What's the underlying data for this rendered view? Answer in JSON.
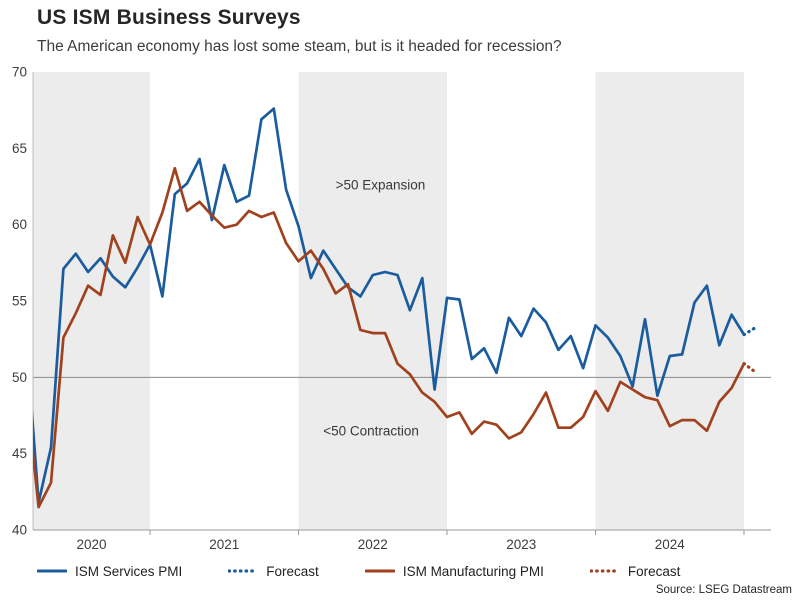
{
  "header": {
    "title": "US ISM Business Surveys",
    "subtitle": "The American economy has lost some steam, but is it headed for recession?"
  },
  "chart_data": {
    "type": "line",
    "title": "US ISM Business Surveys",
    "subtitle": "The American economy has lost some steam, but is it headed for recession?",
    "x_start_month": "2020-03",
    "x_end_solid_month": "2025-01",
    "forecast_month": "2025-02",
    "ylim": [
      40,
      70
    ],
    "yticks": [
      40,
      45,
      50,
      55,
      60,
      65,
      70
    ],
    "year_labels": [
      "2020",
      "2021",
      "2022",
      "2023",
      "2024"
    ],
    "shaded_years": [
      "2020",
      "2022",
      "2024"
    ],
    "reference_line": 50,
    "band_color": "#ececec",
    "series": [
      {
        "name": "ISM Services PMI",
        "color": "#1b5c9e",
        "style": "solid",
        "values": [
          52.5,
          41.8,
          45.4,
          57.1,
          58.1,
          56.9,
          57.8,
          56.6,
          55.9,
          57.2,
          58.7,
          55.3,
          62.0,
          62.7,
          64.3,
          60.3,
          63.9,
          61.5,
          61.9,
          66.9,
          67.6,
          62.3,
          59.9,
          56.5,
          58.3,
          57.1,
          55.9,
          55.3,
          56.7,
          56.9,
          56.7,
          54.4,
          56.5,
          49.2,
          55.2,
          55.1,
          51.2,
          51.9,
          50.3,
          53.9,
          52.7,
          54.5,
          53.6,
          51.8,
          52.7,
          50.6,
          53.4,
          52.6,
          51.4,
          49.4,
          53.8,
          48.8,
          51.4,
          51.5,
          54.9,
          56.0,
          52.1,
          54.1,
          52.8
        ]
      },
      {
        "name": "Forecast",
        "color": "#1b5c9e",
        "style": "dotted",
        "values": [
          53.3
        ]
      },
      {
        "name": "ISM Manufacturing PMI",
        "color": "#a0421e",
        "style": "solid",
        "values": [
          49.1,
          41.5,
          43.1,
          52.6,
          54.2,
          56.0,
          55.4,
          59.3,
          57.5,
          60.5,
          58.7,
          60.8,
          63.7,
          60.9,
          61.5,
          60.6,
          59.8,
          60.0,
          60.9,
          60.5,
          60.8,
          58.8,
          57.6,
          58.3,
          57.1,
          55.5,
          56.1,
          53.1,
          52.9,
          52.9,
          50.9,
          50.2,
          49.0,
          48.4,
          47.4,
          47.7,
          46.3,
          47.1,
          46.9,
          46.0,
          46.4,
          47.6,
          49.0,
          46.7,
          46.7,
          47.4,
          49.1,
          47.8,
          49.7,
          49.2,
          48.7,
          48.5,
          46.8,
          47.2,
          47.2,
          46.5,
          48.4,
          49.3,
          50.9
        ]
      },
      {
        "name": "Forecast",
        "color": "#a0421e",
        "style": "dotted",
        "values": [
          50.3
        ]
      }
    ],
    "annotations": [
      {
        "text": ">50 Expansion",
        "month_index": 25,
        "value": 62.3
      },
      {
        "text": "<50 Contraction",
        "month_index": 24,
        "value": 46.2
      }
    ]
  },
  "footer": {
    "source": "Source: LSEG Datastream"
  }
}
